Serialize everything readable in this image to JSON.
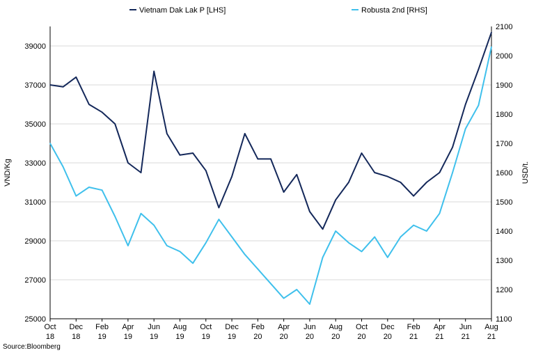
{
  "source_note": "Source:Bloomberg",
  "colors": {
    "lhs_series": "#14285a",
    "rhs_series": "#3fc0ec",
    "grid": "#d9d9d9",
    "axis": "#000000"
  },
  "chart_data": {
    "type": "line",
    "title": "",
    "legend_position": "top",
    "grid": true,
    "x_tick_labels": [
      [
        "Oct",
        "18"
      ],
      [
        "Dec",
        "18"
      ],
      [
        "Feb",
        "19"
      ],
      [
        "Apr",
        "19"
      ],
      [
        "Jun",
        "19"
      ],
      [
        "Aug",
        "19"
      ],
      [
        "Oct",
        "19"
      ],
      [
        "Dec",
        "19"
      ],
      [
        "Feb",
        "20"
      ],
      [
        "Apr",
        "20"
      ],
      [
        "Jun",
        "20"
      ],
      [
        "Aug",
        "20"
      ],
      [
        "Oct",
        "20"
      ],
      [
        "Dec",
        "20"
      ],
      [
        "Feb",
        "21"
      ],
      [
        "Apr",
        "21"
      ],
      [
        "Jun",
        "21"
      ],
      [
        "Aug",
        "21"
      ]
    ],
    "xlim": [
      "2018-10",
      "2021-08"
    ],
    "y_left": {
      "label": "VND/Kg",
      "range": [
        25000,
        40000
      ],
      "ticks": [
        25000,
        27000,
        29000,
        31000,
        33000,
        35000,
        37000,
        39000
      ]
    },
    "y_right": {
      "label": "USD/t.",
      "range": [
        1100,
        2100
      ],
      "ticks": [
        1100,
        1200,
        1300,
        1400,
        1500,
        1600,
        1700,
        1800,
        1900,
        2000,
        2100
      ]
    },
    "series": [
      {
        "name": "Vietnam Dak Lak P [LHS]",
        "axis": "left",
        "x": [
          "2018-10",
          "2018-11",
          "2018-12",
          "2019-01",
          "2019-02",
          "2019-03",
          "2019-04",
          "2019-05",
          "2019-06",
          "2019-07",
          "2019-08",
          "2019-09",
          "2019-10",
          "2019-11",
          "2019-12",
          "2020-01",
          "2020-02",
          "2020-03",
          "2020-04",
          "2020-05",
          "2020-06",
          "2020-07",
          "2020-08",
          "2020-09",
          "2020-10",
          "2020-11",
          "2020-12",
          "2021-01",
          "2021-02",
          "2021-03",
          "2021-04",
          "2021-05",
          "2021-06",
          "2021-07",
          "2021-08"
        ],
        "values": [
          37000,
          36900,
          37400,
          36000,
          35600,
          35000,
          33000,
          32500,
          37700,
          34500,
          33400,
          33500,
          32600,
          30700,
          32300,
          34500,
          33200,
          33200,
          31500,
          32400,
          30500,
          29600,
          31100,
          32000,
          33500,
          32500,
          32300,
          32000,
          31300,
          32000,
          32500,
          33800,
          36000,
          37800,
          39700
        ]
      },
      {
        "name": "Robusta 2nd [RHS]",
        "axis": "right",
        "x": [
          "2018-10",
          "2018-11",
          "2018-12",
          "2019-01",
          "2019-02",
          "2019-03",
          "2019-04",
          "2019-05",
          "2019-06",
          "2019-07",
          "2019-08",
          "2019-09",
          "2019-10",
          "2019-11",
          "2019-12",
          "2020-01",
          "2020-02",
          "2020-03",
          "2020-04",
          "2020-05",
          "2020-06",
          "2020-07",
          "2020-08",
          "2020-09",
          "2020-10",
          "2020-11",
          "2020-12",
          "2021-01",
          "2021-02",
          "2021-03",
          "2021-04",
          "2021-05",
          "2021-06",
          "2021-07",
          "2021-08"
        ],
        "values": [
          1700,
          1620,
          1520,
          1550,
          1540,
          1450,
          1350,
          1460,
          1420,
          1350,
          1330,
          1290,
          1360,
          1440,
          1380,
          1320,
          1270,
          1220,
          1170,
          1200,
          1150,
          1310,
          1400,
          1360,
          1330,
          1380,
          1310,
          1380,
          1420,
          1400,
          1460,
          1600,
          1750,
          1830,
          2030
        ]
      }
    ]
  }
}
